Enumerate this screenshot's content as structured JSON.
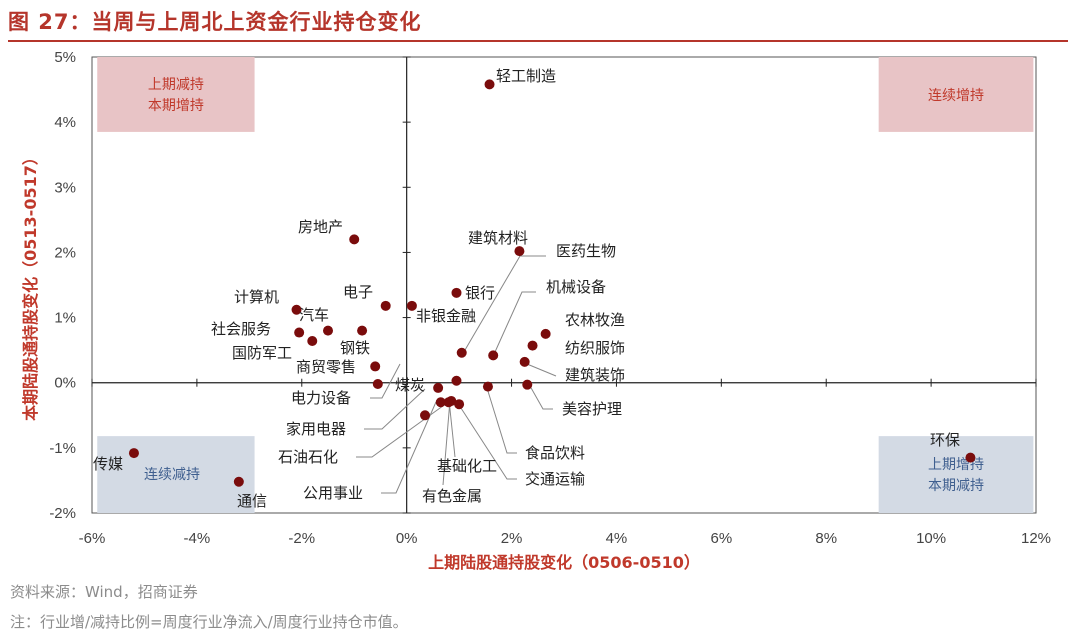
{
  "title": "图 27：当周与上周北上资金行业持仓变化",
  "source": "资料来源：Wind，招商证券",
  "note": "注：行业增/减持比例=周度行业净流入/周度行业持仓市值。",
  "colors": {
    "accent": "#b5352b",
    "point": "#7a0c0c",
    "pink_box": "#e8c4c6",
    "blue_box": "#d3dae4",
    "pink_text": "#c0392b",
    "blue_text": "#3f5f8f"
  },
  "chart_data": {
    "type": "scatter",
    "xlabel": "上期陆股通持股变化（0506-0510）",
    "ylabel": "本期陆股通持股变化（0513-0517）",
    "xlim": [
      -6,
      12
    ],
    "ylim": [
      -2,
      5
    ],
    "x_ticks": [
      "-6%",
      "-4%",
      "-2%",
      "0%",
      "2%",
      "4%",
      "6%",
      "8%",
      "10%",
      "12%"
    ],
    "y_ticks": [
      "-2%",
      "-1%",
      "0%",
      "1%",
      "2%",
      "3%",
      "4%",
      "5%"
    ],
    "quadrant_labels": {
      "top_left": [
        "上期减持",
        "本期增持"
      ],
      "top_right": [
        "连续增持"
      ],
      "bottom_left": [
        "连续减持"
      ],
      "bottom_right": [
        "上期增持",
        "本期减持"
      ]
    },
    "points": [
      {
        "name": "轻工制造",
        "x": 1.58,
        "y": 4.58
      },
      {
        "name": "房地产",
        "x": -1.0,
        "y": 2.2
      },
      {
        "name": "建筑材料",
        "x": 2.15,
        "y": 2.02
      },
      {
        "name": "医药生物",
        "x": 1.05,
        "y": 0.46
      },
      {
        "name": "电子",
        "x": -0.4,
        "y": 1.18
      },
      {
        "name": "非银金融",
        "x": 0.1,
        "y": 1.18
      },
      {
        "name": "银行",
        "x": 0.95,
        "y": 1.38
      },
      {
        "name": "机械设备",
        "x": 1.65,
        "y": 0.42
      },
      {
        "name": "农林牧渔",
        "x": 2.65,
        "y": 0.75
      },
      {
        "name": "纺织服饰",
        "x": 2.4,
        "y": 0.57
      },
      {
        "name": "建筑装饰",
        "x": 2.25,
        "y": 0.32
      },
      {
        "name": "美容护理",
        "x": 2.3,
        "y": -0.03
      },
      {
        "name": "计算机",
        "x": -2.1,
        "y": 1.12
      },
      {
        "name": "汽车",
        "x": -1.5,
        "y": 0.8
      },
      {
        "name": "社会服务",
        "x": -2.05,
        "y": 0.77
      },
      {
        "name": "国防军工",
        "x": -1.8,
        "y": 0.64
      },
      {
        "name": "钢铁",
        "x": -0.85,
        "y": 0.8
      },
      {
        "name": "商贸零售",
        "x": -0.6,
        "y": 0.25
      },
      {
        "name": "电力设备",
        "x": -0.55,
        "y": -0.02
      },
      {
        "name": "家用电器",
        "x": 0.6,
        "y": -0.08
      },
      {
        "name": "煤炭",
        "x": 0.95,
        "y": 0.03
      },
      {
        "name": "食品饮料",
        "x": 1.55,
        "y": -0.06
      },
      {
        "name": "石油石化",
        "x": 0.85,
        "y": -0.28
      },
      {
        "name": "公用事业",
        "x": 0.35,
        "y": -0.5
      },
      {
        "name": "基础化工",
        "x": 0.65,
        "y": -0.3
      },
      {
        "name": "交通运输",
        "x": 1.0,
        "y": -0.33
      },
      {
        "name": "有色金属",
        "x": 0.8,
        "y": -0.3
      },
      {
        "name": "传媒",
        "x": -5.2,
        "y": -1.08
      },
      {
        "name": "通信",
        "x": -3.2,
        "y": -1.52
      },
      {
        "name": "环保",
        "x": 10.75,
        "y": -1.15
      }
    ]
  }
}
